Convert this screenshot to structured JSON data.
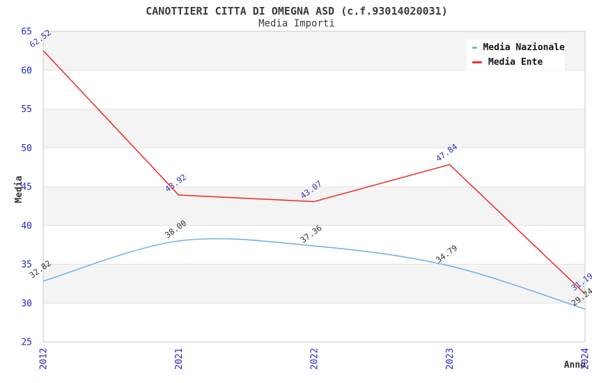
{
  "chart_data": {
    "type": "line",
    "title": "CANOTTIERI CITTA DI OMEGNA ASD (c.f.93014020031)",
    "subtitle": "Media Importi",
    "categories": [
      "2012",
      "2021",
      "2022",
      "2023",
      "2024"
    ],
    "series": [
      {
        "name": "Media Nazionale",
        "color": "#79b0e6",
        "label_color": "#333333",
        "smooth": true,
        "values": [
          32.82,
          38.0,
          37.36,
          34.79,
          29.24
        ]
      },
      {
        "name": "Media Ente",
        "color": "#ed3333",
        "label_color": "#3333bb",
        "smooth": false,
        "values": [
          62.52,
          43.92,
          43.07,
          47.84,
          31.19
        ]
      }
    ],
    "xlabel": "Anno",
    "ylabel": "Media",
    "ylim": [
      25,
      65
    ],
    "yticks": [
      25,
      30,
      35,
      40,
      45,
      50,
      55,
      60,
      65
    ],
    "grid": "horizontal-bands",
    "legend_position": "top-right",
    "band_colors": [
      "#f4f4f4",
      "#ffffff"
    ],
    "tick_color": "#2424cc",
    "gridline_color": "#e2e2e2",
    "plot_border_color": "#c6c9d0"
  }
}
